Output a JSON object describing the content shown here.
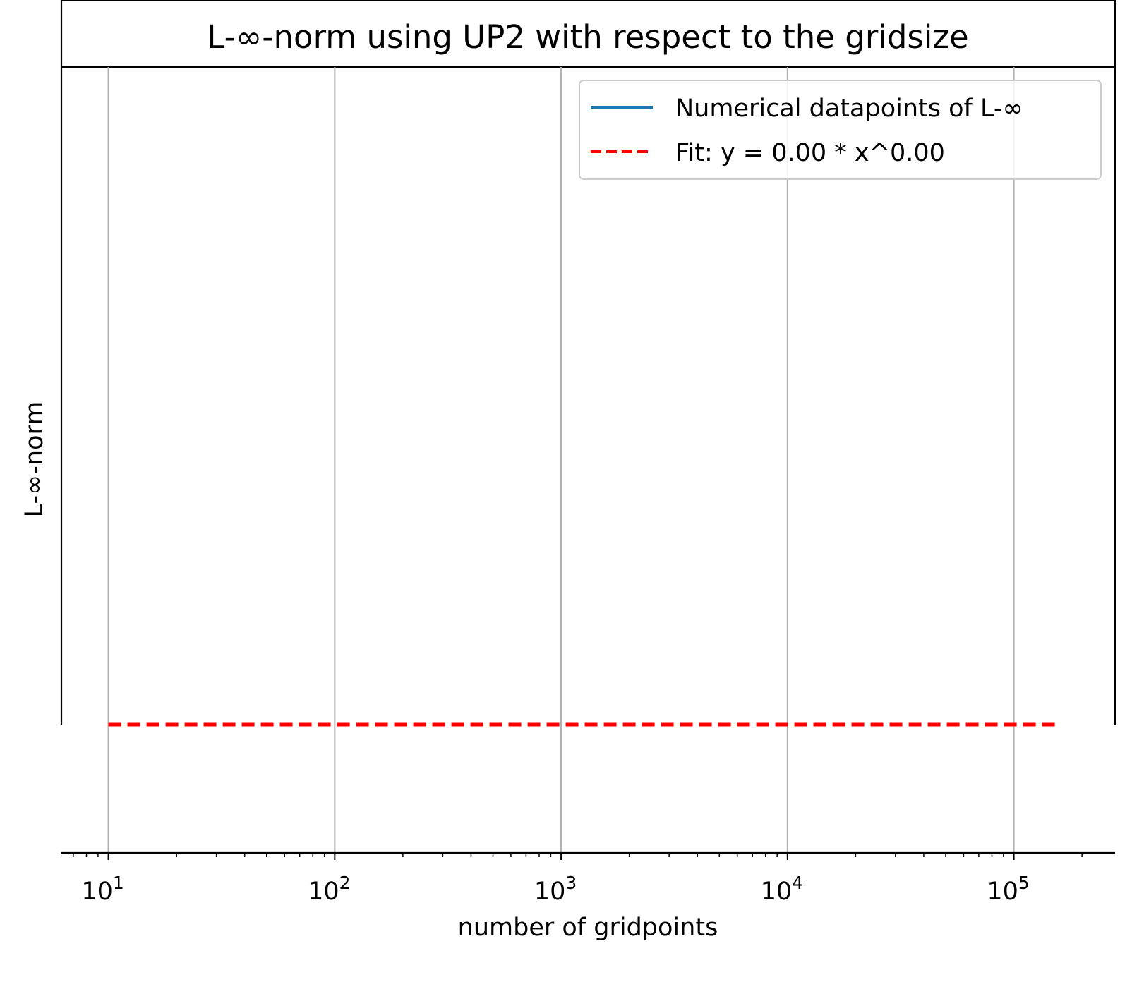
{
  "chart_data": {
    "type": "line",
    "title": "L-∞-norm using UP2 with respect to the gridsize",
    "xlabel": "number of gridpoints",
    "ylabel": "L-∞-norm",
    "xscale": "log",
    "xlim": [
      6.2,
      280000
    ],
    "x_ticks": [
      {
        "base": "10",
        "exp": "1",
        "value": 10
      },
      {
        "base": "10",
        "exp": "2",
        "value": 100
      },
      {
        "base": "10",
        "exp": "3",
        "value": 1000
      },
      {
        "base": "10",
        "exp": "4",
        "value": 10000
      },
      {
        "base": "10",
        "exp": "5",
        "value": 100000
      }
    ],
    "grid": "x-major",
    "legend_position": "upper right",
    "series": [
      {
        "name": "Numerical datapoints of L-∞",
        "color": "#1f77b4",
        "style": "solid",
        "x": [],
        "y": []
      },
      {
        "name": "Fit: y = 0.00 * x^0.00",
        "color": "#ff0000",
        "style": "dashed",
        "x": [
          10,
          160000
        ],
        "y": [
          0,
          0
        ]
      }
    ]
  }
}
